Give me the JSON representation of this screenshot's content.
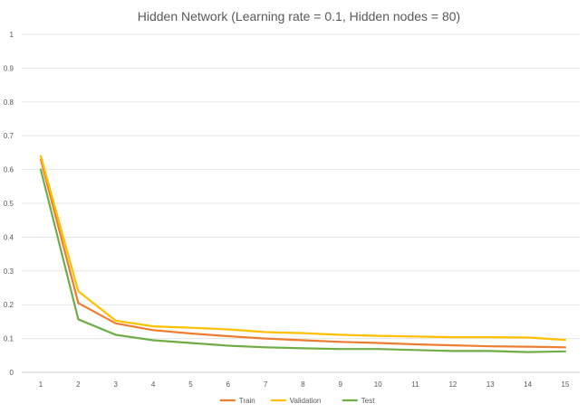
{
  "chart_data": {
    "type": "line",
    "title": "Hidden Network (Learning rate = 0.1, Hidden nodes = 80)",
    "xlabel": "",
    "ylabel": "",
    "x": [
      1,
      2,
      3,
      4,
      5,
      6,
      7,
      8,
      9,
      10,
      11,
      12,
      13,
      14,
      15
    ],
    "ylim": [
      0,
      1
    ],
    "yticks": [
      "0",
      "0.1",
      "0.2",
      "0.3",
      "0.4",
      "0.5",
      "0.6",
      "0.7",
      "0.8",
      "0.9",
      "1"
    ],
    "grid": true,
    "legend_position": "bottom",
    "series": [
      {
        "name": "Train",
        "color": "#ed7d31",
        "values": [
          0.63,
          0.205,
          0.145,
          0.125,
          0.115,
          0.107,
          0.1,
          0.095,
          0.09,
          0.087,
          0.083,
          0.08,
          0.077,
          0.076,
          0.074
        ]
      },
      {
        "name": "Validation",
        "color": "#ffc000",
        "values": [
          0.64,
          0.24,
          0.153,
          0.136,
          0.132,
          0.127,
          0.119,
          0.116,
          0.111,
          0.108,
          0.106,
          0.104,
          0.104,
          0.103,
          0.096
        ]
      },
      {
        "name": "Test",
        "color": "#70ad47",
        "values": [
          0.6,
          0.157,
          0.111,
          0.095,
          0.087,
          0.079,
          0.074,
          0.071,
          0.069,
          0.069,
          0.066,
          0.063,
          0.063,
          0.06,
          0.062
        ]
      }
    ]
  }
}
